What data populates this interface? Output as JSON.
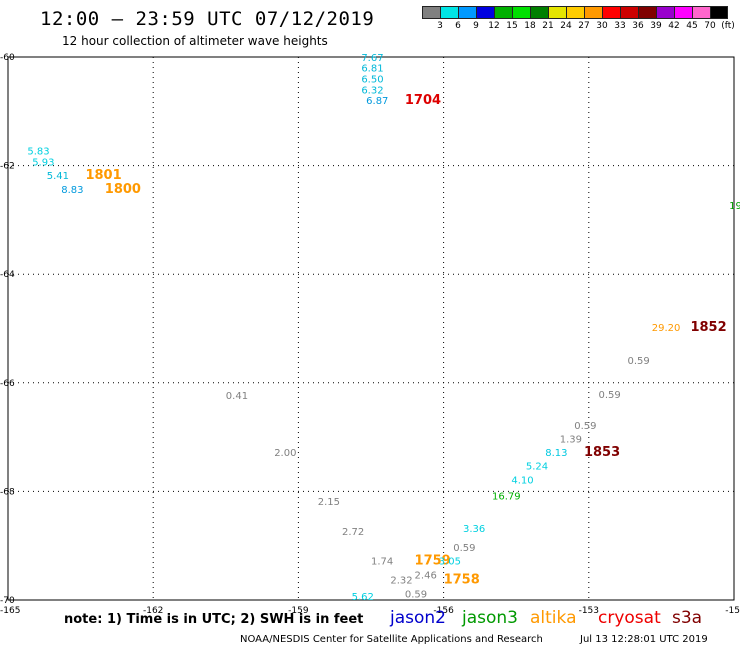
{
  "header": {
    "title": "12:00 — 23:59 UTC 07/12/2019",
    "subtitle": "12 hour collection of altimeter wave heights"
  },
  "legend": {
    "colors": [
      "#808080",
      "#00e5e5",
      "#0099ff",
      "#0000e0",
      "#00b000",
      "#00e000",
      "#008000",
      "#e5e500",
      "#ffcc00",
      "#ff9900",
      "#ff0000",
      "#cc0000",
      "#800000",
      "#9900cc",
      "#ff00ff",
      "#ff66cc",
      "#000000"
    ],
    "labels": [
      "3",
      "6",
      "9",
      "12",
      "15",
      "18",
      "21",
      "24",
      "27",
      "30",
      "33",
      "36",
      "39",
      "42",
      "45",
      "70",
      "(ft)"
    ]
  },
  "axes": {
    "x_ticks": [
      "-165",
      "-162",
      "-159",
      "-156",
      "-153",
      "-15"
    ],
    "y_ticks": [
      "-60",
      "-62",
      "-64",
      "-66",
      "-68",
      "-70"
    ]
  },
  "observations": [
    {
      "text": "7.67",
      "color": "#00b8d8",
      "lon": -157.7,
      "lat": -60.07
    },
    {
      "text": "6.81",
      "color": "#00b8d8",
      "lon": -157.7,
      "lat": -60.27
    },
    {
      "text": "6.50",
      "color": "#00b8d8",
      "lon": -157.7,
      "lat": -60.47
    },
    {
      "text": "6.32",
      "color": "#00b8d8",
      "lon": -157.7,
      "lat": -60.67
    },
    {
      "text": "6.87",
      "color": "#0099dd",
      "lon": -157.6,
      "lat": -60.87
    },
    {
      "text": "1704",
      "color": "#dd0000",
      "lon": -156.8,
      "lat": -60.87,
      "big": true
    },
    {
      "text": "5.83",
      "color": "#00d0e0",
      "lon": -164.6,
      "lat": -61.8
    },
    {
      "text": "5.93",
      "color": "#00d0e0",
      "lon": -164.5,
      "lat": -62.0
    },
    {
      "text": "5.41",
      "color": "#00b8d8",
      "lon": -164.2,
      "lat": -62.25
    },
    {
      "text": "1801",
      "color": "#ff9900",
      "lon": -163.4,
      "lat": -62.25,
      "big": true
    },
    {
      "text": "8.83",
      "color": "#0099dd",
      "lon": -163.9,
      "lat": -62.5
    },
    {
      "text": "1800",
      "color": "#ff9900",
      "lon": -163.0,
      "lat": -62.5,
      "big": true
    },
    {
      "text": "19",
      "color": "#00a000",
      "lon": -150.1,
      "lat": -62.8
    },
    {
      "text": "29.20",
      "color": "#ff9900",
      "lon": -151.7,
      "lat": -65.05
    },
    {
      "text": "1852",
      "color": "#800000",
      "lon": -150.9,
      "lat": -65.05,
      "big": true
    },
    {
      "text": "0.59",
      "color": "#808080",
      "lon": -152.2,
      "lat": -65.65
    },
    {
      "text": "0.41",
      "color": "#808080",
      "lon": -160.5,
      "lat": -66.3
    },
    {
      "text": "0.59",
      "color": "#808080",
      "lon": -152.8,
      "lat": -66.28
    },
    {
      "text": "0.59",
      "color": "#808080",
      "lon": -153.3,
      "lat": -66.85
    },
    {
      "text": "1.39",
      "color": "#808080",
      "lon": -153.6,
      "lat": -67.1
    },
    {
      "text": "8.13",
      "color": "#00c8e0",
      "lon": -153.9,
      "lat": -67.35
    },
    {
      "text": "1853",
      "color": "#800000",
      "lon": -153.1,
      "lat": -67.35,
      "big": true
    },
    {
      "text": "2.00",
      "color": "#808080",
      "lon": -159.5,
      "lat": -67.35
    },
    {
      "text": "5.24",
      "color": "#00d0e0",
      "lon": -154.3,
      "lat": -67.6
    },
    {
      "text": "4.10",
      "color": "#00d0e0",
      "lon": -154.6,
      "lat": -67.85
    },
    {
      "text": "16.79",
      "color": "#00b000",
      "lon": -155.0,
      "lat": -68.15
    },
    {
      "text": "2.15",
      "color": "#808080",
      "lon": -158.6,
      "lat": -68.25
    },
    {
      "text": "3.36",
      "color": "#00d0e0",
      "lon": -155.6,
      "lat": -68.75
    },
    {
      "text": "2.72",
      "color": "#808080",
      "lon": -158.1,
      "lat": -68.8
    },
    {
      "text": "0.59",
      "color": "#808080",
      "lon": -155.8,
      "lat": -69.1
    },
    {
      "text": "1.74",
      "color": "#808080",
      "lon": -157.5,
      "lat": -69.35
    },
    {
      "text": "1759",
      "color": "#ff9900",
      "lon": -156.6,
      "lat": -69.35,
      "big": true
    },
    {
      "text": "3.05",
      "color": "#00d0e0",
      "lon": -156.1,
      "lat": -69.35
    },
    {
      "text": "2.46",
      "color": "#808080",
      "lon": -156.6,
      "lat": -69.6
    },
    {
      "text": "2.32",
      "color": "#808080",
      "lon": -157.1,
      "lat": -69.7
    },
    {
      "text": "1758",
      "color": "#ff9900",
      "lon": -156.0,
      "lat": -69.7,
      "big": true
    },
    {
      "text": "0.59",
      "color": "#808080",
      "lon": -156.8,
      "lat": -69.95
    },
    {
      "text": "5.62",
      "color": "#00d0e0",
      "lon": -157.9,
      "lat": -70.0
    }
  ],
  "footer": {
    "note": "note: 1) Time is in UTC; 2) SWH is in feet",
    "satellites": [
      {
        "name": "jason2",
        "color": "#0000cc"
      },
      {
        "name": "jason3",
        "color": "#009900"
      },
      {
        "name": "altika",
        "color": "#ff9900"
      },
      {
        "name": "cryosat",
        "color": "#ee0000"
      },
      {
        "name": "s3a",
        "color": "#800000"
      }
    ],
    "credit": "NOAA/NESDIS Center for Satellite Applications and Research",
    "timestamp": "Jul 13 12:28:01 UTC 2019"
  }
}
